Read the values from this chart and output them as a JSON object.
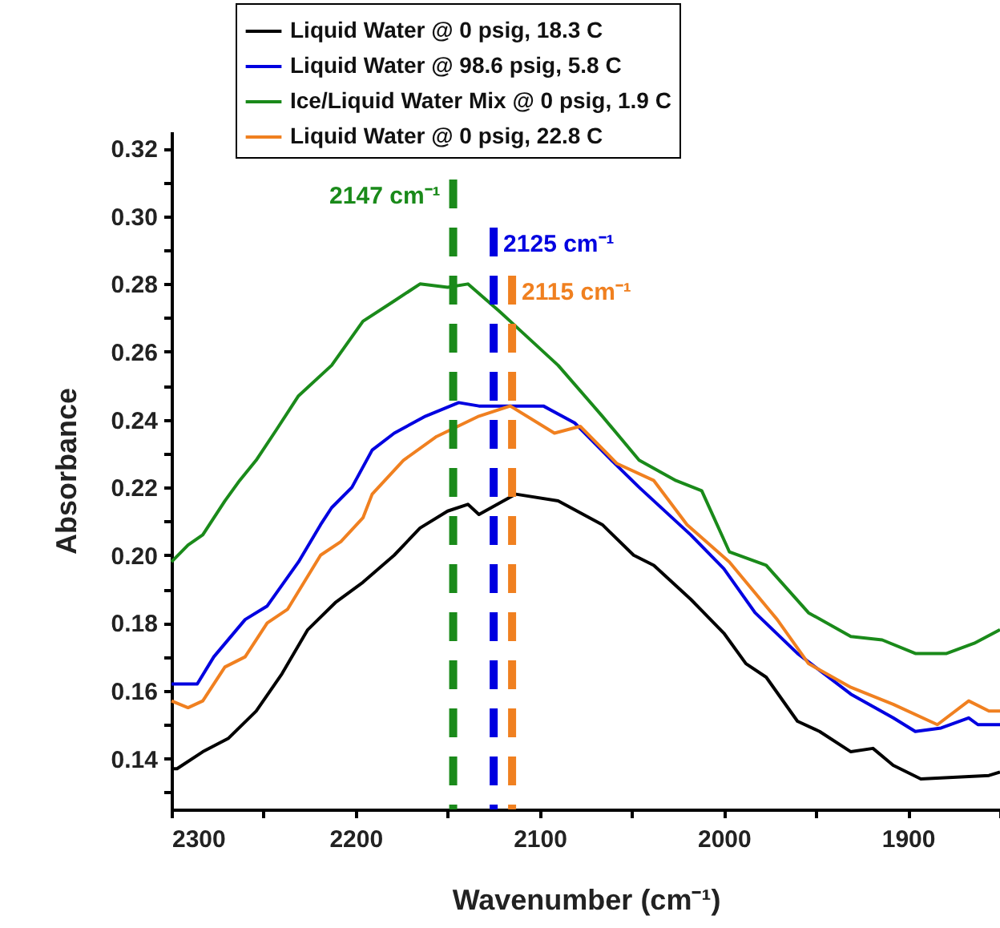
{
  "chart_data": {
    "type": "line",
    "xlabel": "Wavenumber (cm⁻¹)",
    "ylabel": "Absorbance",
    "xlim": [
      2300,
      1850
    ],
    "ylim": [
      0.125,
      0.325
    ],
    "xticks": [
      2300,
      {
        "value": 2250,
        "label": null
      },
      2200,
      {
        "value": 2150,
        "label": null
      },
      2100,
      {
        "value": 2050,
        "label": null
      },
      2000,
      {
        "value": 1950,
        "label": null
      },
      1900,
      {
        "value": 1850,
        "label": null
      }
    ],
    "yticks": [
      {
        "value": 0.13,
        "label": null
      },
      {
        "value": 0.14,
        "label": "0.14"
      },
      {
        "value": 0.15,
        "label": null
      },
      {
        "value": 0.16,
        "label": "0.16"
      },
      {
        "value": 0.17,
        "label": null
      },
      {
        "value": 0.18,
        "label": "0.18"
      },
      {
        "value": 0.19,
        "label": null
      },
      {
        "value": 0.2,
        "label": "0.20"
      },
      {
        "value": 0.21,
        "label": null
      },
      {
        "value": 0.22,
        "label": "0.22"
      },
      {
        "value": 0.23,
        "label": null
      },
      {
        "value": 0.24,
        "label": "0.24"
      },
      {
        "value": 0.25,
        "label": null
      },
      {
        "value": 0.26,
        "label": "0.26"
      },
      {
        "value": 0.27,
        "label": null
      },
      {
        "value": 0.28,
        "label": "0.28"
      },
      {
        "value": 0.29,
        "label": null
      },
      {
        "value": 0.3,
        "label": "0.30"
      },
      {
        "value": 0.31,
        "label": null
      },
      {
        "value": 0.32,
        "label": "0.32"
      }
    ],
    "legend": "top",
    "grid": false,
    "marker": "none",
    "line_style": "solid",
    "series": [
      {
        "name": "Liquid Water @ 0 psig, 18.3 C",
        "color": "#000000",
        "x": [
          2300,
          2297,
          2283,
          2269,
          2254,
          2240,
          2226,
          2211,
          2196,
          2179,
          2165,
          2150,
          2139,
          2133,
          2113,
          2090,
          2066,
          2049,
          2038,
          2018,
          2000,
          1988,
          1977,
          1960,
          1948,
          1931,
          1919,
          1908,
          1893,
          1856,
          1850
        ],
        "values": [
          0.137,
          0.137,
          0.142,
          0.146,
          0.154,
          0.165,
          0.178,
          0.186,
          0.192,
          0.2,
          0.208,
          0.213,
          0.215,
          0.212,
          0.218,
          0.216,
          0.209,
          0.2,
          0.197,
          0.187,
          0.177,
          0.168,
          0.164,
          0.151,
          0.148,
          0.142,
          0.143,
          0.138,
          0.134,
          0.135,
          0.136
        ]
      },
      {
        "name": "Liquid Water @ 98.6 psig, 5.8 C",
        "color": "#0000e0",
        "x": [
          2300,
          2297,
          2286,
          2277,
          2260,
          2248,
          2231,
          2219,
          2213,
          2202,
          2191,
          2179,
          2162,
          2144,
          2133,
          2098,
          2081,
          2061,
          2046,
          2018,
          2000,
          1983,
          1960,
          1931,
          1908,
          1896,
          1882,
          1867,
          1862,
          1850
        ],
        "values": [
          0.162,
          0.162,
          0.162,
          0.17,
          0.181,
          0.185,
          0.198,
          0.209,
          0.214,
          0.22,
          0.231,
          0.236,
          0.241,
          0.245,
          0.244,
          0.244,
          0.239,
          0.228,
          0.22,
          0.206,
          0.196,
          0.183,
          0.171,
          0.159,
          0.152,
          0.148,
          0.149,
          0.152,
          0.15,
          0.15
        ]
      },
      {
        "name": "Ice/Liquid Water Mix @ 0 psig, 1.9 C",
        "color": "#1a8a1a",
        "x": [
          2300,
          2291,
          2283,
          2271,
          2263,
          2254,
          2243,
          2231,
          2213,
          2196,
          2179,
          2165,
          2150,
          2139,
          2122,
          2116,
          2090,
          2066,
          2046,
          2026,
          2012,
          1997,
          1977,
          1954,
          1931,
          1914,
          1896,
          1879,
          1864,
          1850
        ],
        "values": [
          0.198,
          0.203,
          0.206,
          0.216,
          0.222,
          0.228,
          0.237,
          0.247,
          0.256,
          0.269,
          0.275,
          0.28,
          0.279,
          0.28,
          0.272,
          0.269,
          0.256,
          0.241,
          0.228,
          0.222,
          0.219,
          0.201,
          0.197,
          0.183,
          0.176,
          0.175,
          0.171,
          0.171,
          0.174,
          0.178
        ]
      },
      {
        "name": "Liquid Water @ 0 psig, 22.8 C",
        "color": "#f08020",
        "x": [
          2300,
          2291,
          2283,
          2271,
          2260,
          2248,
          2237,
          2219,
          2208,
          2196,
          2191,
          2174,
          2156,
          2133,
          2116,
          2092,
          2078,
          2058,
          2038,
          2020,
          1997,
          1971,
          1954,
          1931,
          1908,
          1884,
          1867,
          1856,
          1850
        ],
        "values": [
          0.157,
          0.155,
          0.157,
          0.167,
          0.17,
          0.18,
          0.184,
          0.2,
          0.204,
          0.211,
          0.218,
          0.228,
          0.235,
          0.241,
          0.244,
          0.236,
          0.238,
          0.227,
          0.222,
          0.209,
          0.198,
          0.181,
          0.168,
          0.161,
          0.156,
          0.15,
          0.157,
          0.154,
          0.154
        ]
      }
    ],
    "ref_lines": [
      {
        "axis": "x",
        "value": 2147,
        "label": "2147 cm⁻¹",
        "color": "#1a8a1a",
        "line_style": "dashed"
      },
      {
        "axis": "x",
        "value": 2125,
        "label": "2125 cm⁻¹",
        "color": "#0000e0",
        "line_style": "dashed"
      },
      {
        "axis": "x",
        "value": 2115,
        "label": "2115 cm⁻¹",
        "color": "#f08020",
        "line_style": "dashed"
      }
    ]
  }
}
